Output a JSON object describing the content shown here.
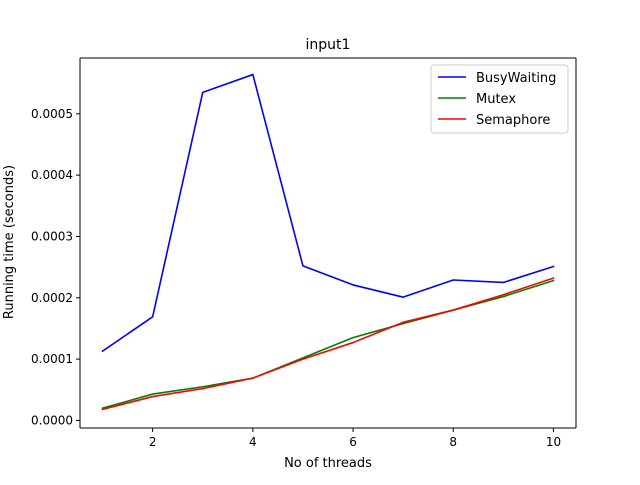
{
  "chart_data": {
    "type": "line",
    "title": "input1",
    "xlabel": "No of threads",
    "ylabel": "Running time (seconds)",
    "x": [
      1,
      2,
      3,
      4,
      5,
      6,
      7,
      8,
      9,
      10
    ],
    "xticks": [
      2,
      4,
      6,
      8,
      10
    ],
    "yticks": [
      0.0,
      0.0001,
      0.0002,
      0.0003,
      0.0004,
      0.0005
    ],
    "ytick_labels": [
      "0.0000",
      "0.0001",
      "0.0002",
      "0.0003",
      "0.0004",
      "0.0005"
    ],
    "xlim": [
      0.55,
      10.45
    ],
    "ylim": [
      -1.23e-05,
      0.000591
    ],
    "grid": false,
    "legend_position": "top-right",
    "series": [
      {
        "name": "BusyWaiting",
        "color": "#0000ff",
        "values": [
          0.000113,
          0.000169,
          0.000535,
          0.000564,
          0.000252,
          0.000221,
          0.000201,
          0.000229,
          0.000225,
          0.000251
        ]
      },
      {
        "name": "Mutex",
        "color": "#008000",
        "values": [
          2e-05,
          4.3e-05,
          5.5e-05,
          6.9e-05,
          0.000102,
          0.000135,
          0.000158,
          0.00018,
          0.000202,
          0.000228
        ]
      },
      {
        "name": "Semaphore",
        "color": "#ff0000",
        "values": [
          1.8e-05,
          3.9e-05,
          5.2e-05,
          6.9e-05,
          0.0001,
          0.000127,
          0.00016,
          0.00018,
          0.000205,
          0.000232
        ]
      }
    ]
  }
}
